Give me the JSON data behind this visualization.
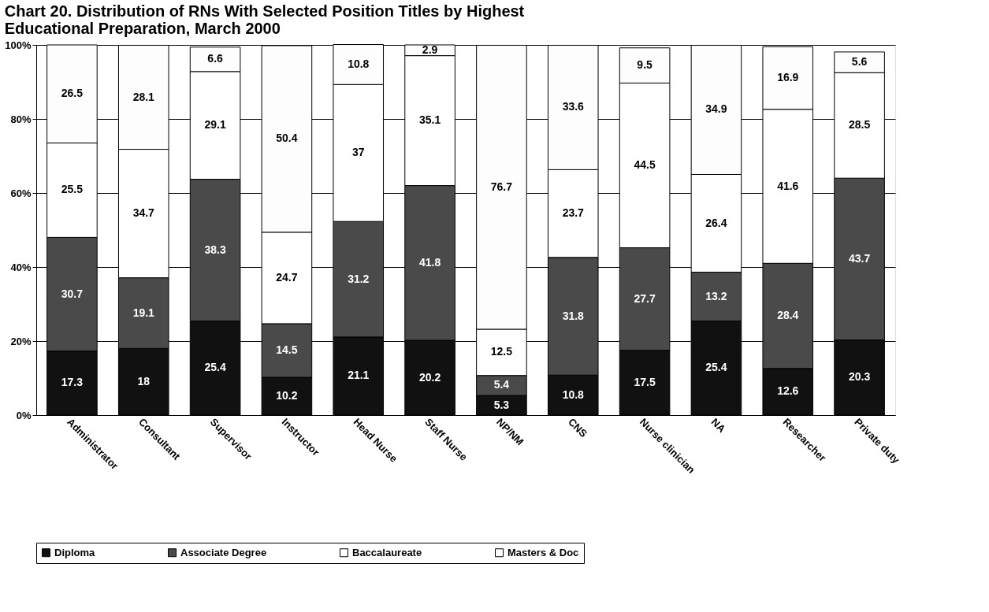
{
  "chart_data": {
    "type": "bar",
    "stacked": true,
    "title": [
      "Chart 20. Distribution of RNs With Selected Position Titles by Highest",
      "Educational Preparation, March 2000"
    ],
    "categories": [
      "Administrator",
      "Consultant",
      "Supervisor",
      "Instructor",
      "Head Nurse",
      "Staff Nurse",
      "NP/NM",
      "CNS",
      "Nurse clinician",
      "NA",
      "Researcher",
      "Private duty"
    ],
    "series": [
      {
        "name": "Diploma",
        "color": "#111111",
        "values": [
          17.3,
          18,
          25.4,
          10.2,
          21.1,
          20.2,
          5.3,
          10.8,
          17.5,
          25.4,
          12.6,
          20.3
        ]
      },
      {
        "name": "Associate Degree",
        "color": "#4a4a4a",
        "values": [
          30.7,
          19.1,
          38.3,
          14.5,
          31.2,
          41.8,
          5.4,
          31.8,
          27.7,
          13.2,
          28.4,
          43.7
        ]
      },
      {
        "name": "Baccalaureate",
        "color": "#ffffff",
        "values": [
          25.5,
          34.7,
          29.1,
          24.7,
          37,
          35.1,
          12.5,
          23.7,
          44.5,
          26.4,
          41.6,
          28.5
        ]
      },
      {
        "name": "Masters & Doc",
        "color": "#fdfdfd",
        "values": [
          26.5,
          28.1,
          6.6,
          50.4,
          10.8,
          2.9,
          76.7,
          33.6,
          9.5,
          34.9,
          16.9,
          5.6
        ]
      }
    ],
    "ylim": [
      0,
      100
    ],
    "yticks": [
      {
        "value": 0,
        "label": "0%"
      },
      {
        "value": 20,
        "label": "20%"
      },
      {
        "value": 40,
        "label": "40%"
      },
      {
        "value": 60,
        "label": "60%"
      },
      {
        "value": 80,
        "label": "80%"
      },
      {
        "value": 100,
        "label": "100%"
      }
    ],
    "grid": "y",
    "legend": "bottom",
    "data_labels": true
  }
}
